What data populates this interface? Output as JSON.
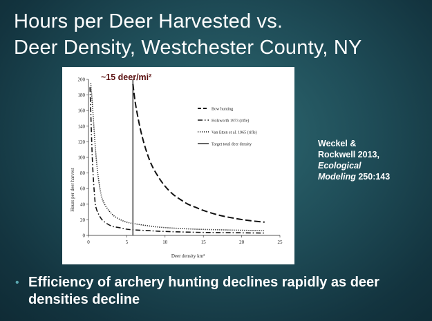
{
  "slide": {
    "title_line1": "Hours per Deer Harvested vs.",
    "title_line2": "Deer Density, Westchester County, NY",
    "annotation": "~15 deer/mi²",
    "citation": {
      "line1": "Weckel &",
      "line2": "Rockwell 2013,",
      "journal_line1": "Ecological",
      "journal_line2": "Modeling",
      "ref": " 250:143"
    },
    "bullet": "Efficiency of archery hunting declines rapidly as deer densities decline"
  },
  "chart_data": {
    "type": "line",
    "xlabel": "Deer density km²",
    "ylabel": "Hours per deer harvest",
    "xlim": [
      0,
      25
    ],
    "ylim": [
      0,
      200
    ],
    "xticks": [
      0,
      5,
      10,
      15,
      20,
      25
    ],
    "yticks": [
      0,
      20,
      40,
      60,
      80,
      100,
      120,
      140,
      160,
      180,
      200
    ],
    "legend_position": "top-right",
    "target_density": 5.8,
    "series": [
      {
        "name": "Bow hunting",
        "style": "dashed",
        "x": [
          5.8,
          6.2,
          7,
          8,
          9,
          10,
          11,
          12,
          13,
          14,
          15,
          17,
          19,
          21,
          23
        ],
        "y": [
          194,
          165,
          127,
          96,
          77,
          63,
          53,
          46,
          40,
          36,
          32,
          26,
          22,
          19,
          17
        ]
      },
      {
        "name": "Holsworth 1973 (rifle)",
        "style": "dash-dot",
        "x": [
          0.2,
          0.5,
          0.8,
          1,
          1.5,
          2,
          3,
          4,
          5,
          6,
          8,
          10,
          14,
          18,
          23
        ],
        "y": [
          190,
          100,
          50,
          35,
          24,
          18,
          12,
          10,
          8,
          7,
          6,
          5,
          4,
          3.5,
          3
        ]
      },
      {
        "name": "Van Etten et al. 1965 (rifle)",
        "style": "dotted",
        "x": [
          0.3,
          0.5,
          1,
          1.5,
          2,
          3,
          4,
          5,
          6,
          8,
          10,
          14,
          18,
          23
        ],
        "y": [
          195,
          170,
          100,
          60,
          42,
          28,
          21,
          17,
          15,
          12,
          10,
          8,
          7,
          6
        ]
      },
      {
        "name": "Target total deer density",
        "style": "solid",
        "x": [
          5.8,
          5.8
        ],
        "y": [
          0,
          200
        ]
      }
    ]
  }
}
